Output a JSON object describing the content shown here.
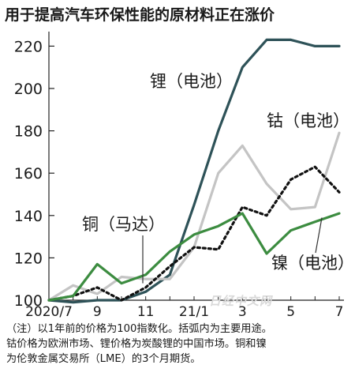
{
  "title": "用于提高汽车环保性能的原材料正在涨价",
  "watermark": "日经中文网",
  "notes": [
    "（注）以1年前的价格为100指数化。括弧内为主要用途。",
    "钴价格为欧洲市场、锂价格为炭酸锂的中国市场。铜和镍",
    "为伦敦金属交易所（LME）的3个月期货。"
  ],
  "chart_data": {
    "type": "line",
    "x": [
      "2020/7",
      "2020/8",
      "2020/9",
      "2020/10",
      "2020/11",
      "2020/12",
      "2021/1",
      "2021/2",
      "2021/3",
      "2021/4",
      "2021/5",
      "2021/6",
      "2021/7"
    ],
    "xtick_labels": [
      "2020/7",
      "9",
      "11",
      "21/1",
      "3",
      "5",
      "7"
    ],
    "ylim": [
      100,
      225
    ],
    "yticks": [
      100,
      120,
      140,
      160,
      180,
      200,
      220
    ],
    "grid": false,
    "series": [
      {
        "name": "锂（电池）",
        "color": "#2e5258",
        "style": "solid",
        "values": [
          100,
          99,
          100,
          100,
          104,
          112,
          145,
          180,
          210,
          223,
          223,
          220,
          220
        ]
      },
      {
        "name": "钴（电池）",
        "color": "#c4c4c4",
        "style": "solid",
        "values": [
          100,
          107,
          103,
          111,
          110,
          110,
          125,
          160,
          173,
          155,
          143,
          144,
          179
        ]
      },
      {
        "name": "铜（马达）",
        "color": "#111111",
        "style": "dotted",
        "values": [
          100,
          102,
          106,
          100,
          106,
          116,
          125,
          124,
          144,
          140,
          157,
          163,
          151
        ]
      },
      {
        "name": "镍（电池）",
        "color": "#3c8c40",
        "style": "solid",
        "values": [
          100,
          102,
          117,
          108,
          112,
          123,
          131,
          135,
          141,
          122,
          133,
          137,
          141
        ]
      }
    ]
  }
}
